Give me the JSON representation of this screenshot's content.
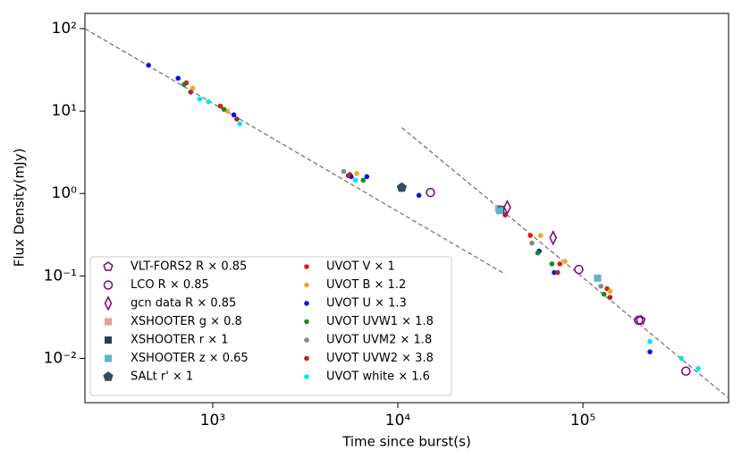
{
  "chart_data": {
    "type": "scatter",
    "xlabel": "Time since burst(s)",
    "ylabel": "Flux Density(mJy)",
    "xscale": "log",
    "yscale": "log",
    "xlim": [
      204,
      612000
    ],
    "ylim": [
      0.0029,
      153
    ],
    "xticks": [
      {
        "value": 1000,
        "label": "10³"
      },
      {
        "value": 10000,
        "label": "10⁴"
      },
      {
        "value": 100000,
        "label": "10⁵"
      }
    ],
    "yticks": [
      {
        "value": 0.01,
        "label": "10⁻²"
      },
      {
        "value": 0.1,
        "label": "10⁻¹"
      },
      {
        "value": 1,
        "label": "10⁰"
      },
      {
        "value": 10,
        "label": "10¹"
      },
      {
        "value": 100,
        "label": "10²"
      }
    ],
    "legend": "lower left",
    "fit_lines": [
      {
        "x": [
          204,
          38000
        ],
        "y": [
          100,
          0.105
        ]
      },
      {
        "x": [
          10500,
          612000
        ],
        "y": [
          6.3,
          0.0033
        ]
      }
    ],
    "series": [
      {
        "name": "VLT-FORS2 R × 0.85",
        "color": "#800080",
        "marker": "pentagon",
        "x": [
          205000
        ],
        "values": [
          0.029
        ]
      },
      {
        "name": "LCO R × 0.85",
        "color": "#800080",
        "marker": "circle-open",
        "x": [
          15000,
          95000,
          200000,
          360000
        ],
        "values": [
          1.03,
          0.12,
          0.029,
          0.007
        ]
      },
      {
        "name": "gcn data R × 0.85",
        "color": "#800080",
        "marker": "diamond-open",
        "x": [
          39000,
          69000
        ],
        "values": [
          0.68,
          0.29
        ]
      },
      {
        "name": "XSHOOTER g × 0.8",
        "color": "#e8a090",
        "marker": "square",
        "x": [
          35000
        ],
        "values": [
          0.66
        ]
      },
      {
        "name": "XSHOOTER r × 1",
        "color": "#2a3f50",
        "marker": "square",
        "x": [
          36000
        ],
        "values": [
          0.64
        ]
      },
      {
        "name": "XSHOOTER z × 0.65",
        "color": "#5ab4d0",
        "marker": "square",
        "x": [
          35500,
          120000
        ],
        "values": [
          0.62,
          0.094
        ]
      },
      {
        "name": "SALt r' × 1",
        "color": "#2f4f5f",
        "marker": "pentagon",
        "x": [
          10500
        ],
        "values": [
          1.18
        ]
      },
      {
        "name": "UVOT V × 1",
        "color": "#e41a1c",
        "marker": "dot",
        "x": [
          720,
          1100,
          5500,
          52000,
          75000,
          135000
        ],
        "values": [
          22,
          11.5,
          1.7,
          0.31,
          0.14,
          0.07
        ]
      },
      {
        "name": "UVOT B × 1.2",
        "color": "#f5a623",
        "marker": "dot",
        "x": [
          780,
          1200,
          6000,
          59000,
          80000,
          140000
        ],
        "values": [
          19,
          10,
          1.75,
          0.31,
          0.15,
          0.065
        ]
      },
      {
        "name": "UVOT U × 1.3",
        "color": "#0a14e6",
        "marker": "dot",
        "x": [
          450,
          650,
          1300,
          5600,
          6800,
          13000,
          58000,
          70000,
          230000
        ],
        "values": [
          36,
          25,
          9,
          1.6,
          1.6,
          0.95,
          0.2,
          0.11,
          0.012
        ]
      },
      {
        "name": "UVOT UVW1 × 1.8",
        "color": "#1a8a1a",
        "marker": "dot",
        "x": [
          700,
          1150,
          6500,
          57000,
          68000,
          130000
        ],
        "values": [
          21,
          10.5,
          1.45,
          0.19,
          0.14,
          0.06
        ]
      },
      {
        "name": "UVOT UVM2 × 1.8",
        "color": "#888888",
        "marker": "dot",
        "x": [
          5100,
          53000,
          125000
        ],
        "values": [
          1.85,
          0.25,
          0.075
        ]
      },
      {
        "name": "UVOT UVW2 × 3.8",
        "color": "#a52a2a",
        "marker": "dot",
        "x": [
          760,
          1350,
          5400,
          38000,
          73000,
          140000
        ],
        "values": [
          17,
          8,
          1.65,
          0.55,
          0.11,
          0.055
        ]
      },
      {
        "name": "UVOT white × 1.6",
        "color": "#00e5ee",
        "marker": "dot",
        "x": [
          850,
          950,
          1400,
          5900,
          230000,
          340000,
          420000
        ],
        "values": [
          14,
          13,
          7,
          1.45,
          0.016,
          0.01,
          0.0075
        ]
      }
    ]
  }
}
